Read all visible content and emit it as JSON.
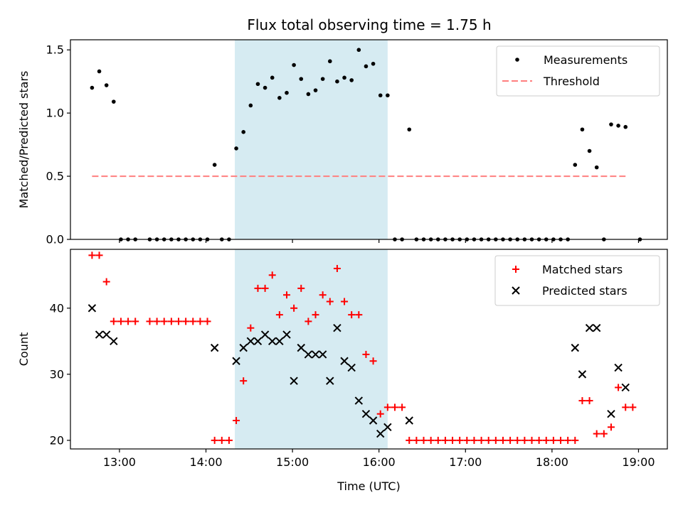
{
  "title": "Flux total observing time = 1.75 h",
  "chart_data": [
    {
      "type": "scatter",
      "panel": "top",
      "ylabel": "Matched/Predicted stars",
      "xlabel": "",
      "xlim": [
        "12:26",
        "19:20"
      ],
      "ylim": [
        0,
        1.58
      ],
      "y_ticks": [
        0.0,
        0.5,
        1.0,
        1.5
      ],
      "y_tick_labels": [
        "0.0",
        "0.5",
        "1.0",
        "1.5"
      ],
      "x_ticks": [
        "13:00",
        "14:00",
        "15:00",
        "16:00",
        "17:00",
        "18:00",
        "19:00"
      ],
      "x_tick_labels_shown": false,
      "shaded_span": [
        "14:20",
        "16:06"
      ],
      "shaded_color": "#add8e6",
      "legend": {
        "location": "top-right",
        "entries": [
          "Measurements",
          "Threshold"
        ]
      },
      "series": [
        {
          "name": "Measurements",
          "marker": "dot",
          "color": "#000000",
          "points": [
            [
              "12:41",
              1.2
            ],
            [
              "12:46",
              1.33
            ],
            [
              "12:51",
              1.22
            ],
            [
              "12:56",
              1.09
            ],
            [
              "13:01",
              0.0
            ],
            [
              "13:06",
              0.0
            ],
            [
              "13:11",
              0.0
            ],
            [
              "13:21",
              0.0
            ],
            [
              "13:26",
              0.0
            ],
            [
              "13:31",
              0.0
            ],
            [
              "13:36",
              0.0
            ],
            [
              "13:41",
              0.0
            ],
            [
              "13:46",
              0.0
            ],
            [
              "13:51",
              0.0
            ],
            [
              "13:56",
              0.0
            ],
            [
              "14:01",
              0.0
            ],
            [
              "14:06",
              0.59
            ],
            [
              "14:11",
              0.0
            ],
            [
              "14:16",
              0.0
            ],
            [
              "14:21",
              0.72
            ],
            [
              "14:26",
              0.85
            ],
            [
              "14:31",
              1.06
            ],
            [
              "14:36",
              1.23
            ],
            [
              "14:41",
              1.2
            ],
            [
              "14:46",
              1.28
            ],
            [
              "14:51",
              1.12
            ],
            [
              "14:56",
              1.16
            ],
            [
              "15:01",
              1.38
            ],
            [
              "15:06",
              1.27
            ],
            [
              "15:11",
              1.15
            ],
            [
              "15:16",
              1.18
            ],
            [
              "15:21",
              1.27
            ],
            [
              "15:26",
              1.41
            ],
            [
              "15:31",
              1.25
            ],
            [
              "15:36",
              1.28
            ],
            [
              "15:41",
              1.26
            ],
            [
              "15:46",
              1.5
            ],
            [
              "15:51",
              1.37
            ],
            [
              "15:56",
              1.39
            ],
            [
              "16:01",
              1.14
            ],
            [
              "16:06",
              1.14
            ],
            [
              "16:11",
              0.0
            ],
            [
              "16:16",
              0.0
            ],
            [
              "16:21",
              0.87
            ],
            [
              "16:26",
              0.0
            ],
            [
              "16:31",
              0.0
            ],
            [
              "16:36",
              0.0
            ],
            [
              "16:41",
              0.0
            ],
            [
              "16:46",
              0.0
            ],
            [
              "16:51",
              0.0
            ],
            [
              "16:56",
              0.0
            ],
            [
              "17:01",
              0.0
            ],
            [
              "17:06",
              0.0
            ],
            [
              "17:11",
              0.0
            ],
            [
              "17:16",
              0.0
            ],
            [
              "17:21",
              0.0
            ],
            [
              "17:26",
              0.0
            ],
            [
              "17:31",
              0.0
            ],
            [
              "17:36",
              0.0
            ],
            [
              "17:41",
              0.0
            ],
            [
              "17:46",
              0.0
            ],
            [
              "17:51",
              0.0
            ],
            [
              "17:56",
              0.0
            ],
            [
              "18:01",
              0.0
            ],
            [
              "18:06",
              0.0
            ],
            [
              "18:11",
              0.0
            ],
            [
              "18:16",
              0.59
            ],
            [
              "18:21",
              0.87
            ],
            [
              "18:26",
              0.7
            ],
            [
              "18:31",
              0.57
            ],
            [
              "18:36",
              0.0
            ],
            [
              "18:41",
              0.91
            ],
            [
              "18:46",
              0.9
            ],
            [
              "18:51",
              0.89
            ],
            [
              "19:01",
              0.0
            ]
          ]
        },
        {
          "name": "Threshold",
          "marker": "dashed-line",
          "color": "#ff7f7f",
          "points": [
            [
              "12:41",
              0.5
            ],
            [
              "18:51",
              0.5
            ]
          ]
        }
      ]
    },
    {
      "type": "scatter",
      "panel": "bottom",
      "ylabel": "Count",
      "xlabel": "Time (UTC)",
      "xlim": [
        "12:26",
        "19:20"
      ],
      "ylim": [
        18.7,
        48.9
      ],
      "y_ticks": [
        20,
        30,
        40
      ],
      "y_tick_labels": [
        "20",
        "30",
        "40"
      ],
      "x_ticks": [
        "13:00",
        "14:00",
        "15:00",
        "16:00",
        "17:00",
        "18:00",
        "19:00"
      ],
      "x_tick_labels": [
        "13:00",
        "14:00",
        "15:00",
        "16:00",
        "17:00",
        "18:00",
        "19:00"
      ],
      "shaded_span": [
        "14:20",
        "16:06"
      ],
      "shaded_color": "#add8e6",
      "legend": {
        "location": "top-right",
        "entries": [
          "Matched stars",
          "Predicted stars"
        ]
      },
      "series": [
        {
          "name": "Matched stars",
          "marker": "plus",
          "color": "#ff0000",
          "points": [
            [
              "12:41",
              48
            ],
            [
              "12:46",
              48
            ],
            [
              "12:51",
              44
            ],
            [
              "12:56",
              38
            ],
            [
              "13:01",
              38
            ],
            [
              "13:06",
              38
            ],
            [
              "13:11",
              38
            ],
            [
              "13:21",
              38
            ],
            [
              "13:26",
              38
            ],
            [
              "13:31",
              38
            ],
            [
              "13:36",
              38
            ],
            [
              "13:41",
              38
            ],
            [
              "13:46",
              38
            ],
            [
              "13:51",
              38
            ],
            [
              "13:56",
              38
            ],
            [
              "14:01",
              38
            ],
            [
              "14:06",
              20
            ],
            [
              "14:11",
              20
            ],
            [
              "14:16",
              20
            ],
            [
              "14:21",
              23
            ],
            [
              "14:26",
              29
            ],
            [
              "14:31",
              37
            ],
            [
              "14:36",
              43
            ],
            [
              "14:41",
              43
            ],
            [
              "14:46",
              45
            ],
            [
              "14:51",
              39
            ],
            [
              "14:56",
              42
            ],
            [
              "15:01",
              40
            ],
            [
              "15:06",
              43
            ],
            [
              "15:11",
              38
            ],
            [
              "15:16",
              39
            ],
            [
              "15:21",
              42
            ],
            [
              "15:26",
              41
            ],
            [
              "15:31",
              46
            ],
            [
              "15:36",
              41
            ],
            [
              "15:41",
              39
            ],
            [
              "15:46",
              39
            ],
            [
              "15:51",
              33
            ],
            [
              "15:56",
              32
            ],
            [
              "16:01",
              24
            ],
            [
              "16:06",
              25
            ],
            [
              "16:11",
              25
            ],
            [
              "16:16",
              25
            ],
            [
              "16:21",
              20
            ],
            [
              "16:26",
              20
            ],
            [
              "16:31",
              20
            ],
            [
              "16:36",
              20
            ],
            [
              "16:41",
              20
            ],
            [
              "16:46",
              20
            ],
            [
              "16:51",
              20
            ],
            [
              "16:56",
              20
            ],
            [
              "17:01",
              20
            ],
            [
              "17:06",
              20
            ],
            [
              "17:11",
              20
            ],
            [
              "17:16",
              20
            ],
            [
              "17:21",
              20
            ],
            [
              "17:26",
              20
            ],
            [
              "17:31",
              20
            ],
            [
              "17:36",
              20
            ],
            [
              "17:41",
              20
            ],
            [
              "17:46",
              20
            ],
            [
              "17:51",
              20
            ],
            [
              "17:56",
              20
            ],
            [
              "18:01",
              20
            ],
            [
              "18:06",
              20
            ],
            [
              "18:11",
              20
            ],
            [
              "18:16",
              20
            ],
            [
              "18:21",
              26
            ],
            [
              "18:26",
              26
            ],
            [
              "18:31",
              21
            ],
            [
              "18:36",
              21
            ],
            [
              "18:41",
              22
            ],
            [
              "18:46",
              28
            ],
            [
              "18:51",
              25
            ],
            [
              "18:56",
              25
            ]
          ]
        },
        {
          "name": "Predicted stars",
          "marker": "x",
          "color": "#000000",
          "points": [
            [
              "12:41",
              40
            ],
            [
              "12:46",
              36
            ],
            [
              "12:51",
              36
            ],
            [
              "12:56",
              35
            ],
            [
              "14:06",
              34
            ],
            [
              "14:21",
              32
            ],
            [
              "14:26",
              34
            ],
            [
              "14:31",
              35
            ],
            [
              "14:36",
              35
            ],
            [
              "14:41",
              36
            ],
            [
              "14:46",
              35
            ],
            [
              "14:51",
              35
            ],
            [
              "14:56",
              36
            ],
            [
              "15:01",
              29
            ],
            [
              "15:06",
              34
            ],
            [
              "15:11",
              33
            ],
            [
              "15:16",
              33
            ],
            [
              "15:21",
              33
            ],
            [
              "15:26",
              29
            ],
            [
              "15:31",
              37
            ],
            [
              "15:36",
              32
            ],
            [
              "15:41",
              31
            ],
            [
              "15:46",
              26
            ],
            [
              "15:51",
              24
            ],
            [
              "15:56",
              23
            ],
            [
              "16:01",
              21
            ],
            [
              "16:06",
              22
            ],
            [
              "16:21",
              23
            ],
            [
              "18:16",
              34
            ],
            [
              "18:21",
              30
            ],
            [
              "18:26",
              37
            ],
            [
              "18:31",
              37
            ],
            [
              "18:41",
              24
            ],
            [
              "18:46",
              31
            ],
            [
              "18:51",
              28
            ]
          ]
        }
      ]
    }
  ]
}
